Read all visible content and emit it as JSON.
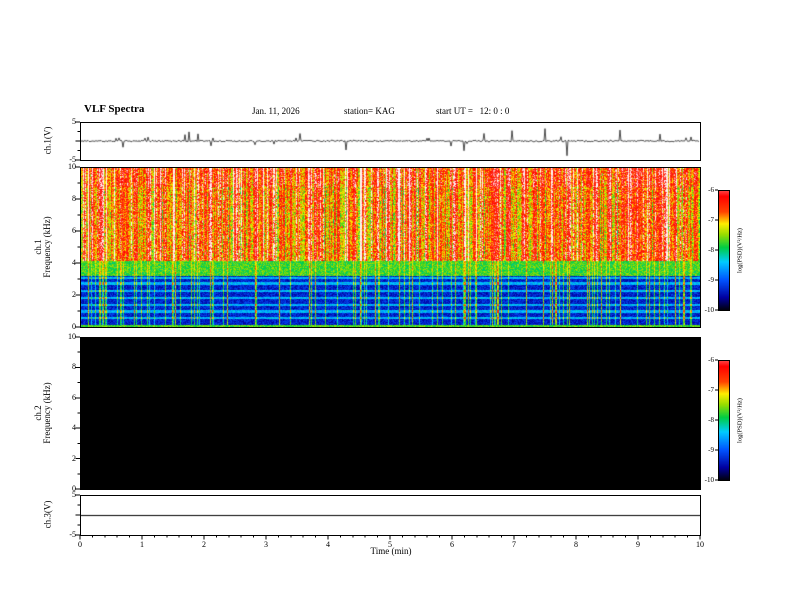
{
  "header": {
    "title": "VLF Spectra",
    "date": "Jan. 11, 2026",
    "station": "station= KAG",
    "start_ut": "start UT =   12: 0 : 0"
  },
  "x_axis": {
    "label": "Time (min)",
    "ticks": [
      0,
      1,
      2,
      3,
      4,
      5,
      6,
      7,
      8,
      9,
      10
    ],
    "range": [
      0,
      10
    ]
  },
  "panels": {
    "ch1_wave": {
      "axis_label": "ch.1(V)",
      "tick_labels": [
        5,
        -5
      ],
      "ylim": [
        -5,
        5
      ]
    },
    "ch1_spec": {
      "axis_label_line1": "ch.1",
      "axis_label_line2": "Frequency (kHz)",
      "tick_labels": [
        0,
        2,
        4,
        6,
        8,
        10
      ],
      "ylim": [
        0,
        10
      ]
    },
    "ch2_spec": {
      "axis_label_line1": "ch.2",
      "axis_label_line2": "Frequency (kHz)",
      "tick_labels": [
        0,
        2,
        4,
        6,
        8,
        10
      ],
      "ylim": [
        0,
        10
      ]
    },
    "ch3_wave": {
      "axis_label": "ch.3(V)",
      "tick_labels": [
        5,
        -5
      ],
      "ylim": [
        -5,
        5
      ]
    }
  },
  "colorbars": [
    {
      "label": "log(PSD)(V²/Hz)",
      "tick_labels": [
        -6,
        -7,
        -8,
        -9,
        -10
      ],
      "range": [
        -6,
        -10
      ]
    },
    {
      "label": "log(PSD)(V²/Hz)",
      "tick_labels": [
        -6,
        -7,
        -8,
        -9,
        -10
      ],
      "range": [
        -6,
        -10
      ]
    }
  ],
  "colormap": {
    "stops": [
      [
        0.0,
        "#000012"
      ],
      [
        0.1,
        "#0000a0"
      ],
      [
        0.25,
        "#0055ff"
      ],
      [
        0.4,
        "#00ccff"
      ],
      [
        0.52,
        "#00cc44"
      ],
      [
        0.63,
        "#99dd00"
      ],
      [
        0.72,
        "#ffee00"
      ],
      [
        0.82,
        "#ff4400"
      ],
      [
        0.95,
        "#ff0000"
      ],
      [
        1.13,
        "#ffffff"
      ]
    ]
  },
  "chart_data": [
    {
      "type": "line",
      "title": "ch.1(V) time series",
      "xlabel": "Time (min)",
      "ylabel": "ch.1(V)",
      "xlim": [
        0,
        10
      ],
      "ylim": [
        -5,
        5
      ],
      "description": "Noisy baseline near 0 V with many short impulsive spikes throughout the 10-minute record; several spikes approach +5/-5 V (notably near 0.1, 2.7, 4.9, 6.8 and 7.9 min)."
    },
    {
      "type": "heatmap",
      "title": "ch.1 VLF spectrogram",
      "xlabel": "Time (min)",
      "ylabel": "Frequency (kHz)",
      "xlim": [
        0,
        10
      ],
      "ylim": [
        0,
        10
      ],
      "zlabel": "log(PSD)(V²/Hz)",
      "zlim": [
        -10,
        -6
      ],
      "description": "Dense broadband impulsive (sferic) activity: intense power (red/white, about -6) from ~4 to 10 kHz as near-continuous vertical striping; a yellow-green band near 3-4 kHz (about -8); weak blue background (about -9.5) below 3 kHz crossed by narrow cyan horizontal lines (~0.5-3 kHz) and frequent vertical green impulse streaks extending down to 0 kHz; bright green line along the 0 kHz edge."
    },
    {
      "type": "heatmap",
      "title": "ch.2 VLF spectrogram",
      "xlabel": "Time (min)",
      "ylabel": "Frequency (kHz)",
      "xlim": [
        0,
        10
      ],
      "ylim": [
        0,
        10
      ],
      "zlabel": "log(PSD)(V²/Hz)",
      "zlim": [
        -10,
        -6
      ],
      "description": "No signal: uniformly black panel (power at or below -10 over 0-10 kHz for the whole record)."
    },
    {
      "type": "line",
      "title": "ch.3(V) time series",
      "xlabel": "Time (min)",
      "ylabel": "ch.3(V)",
      "xlim": [
        0,
        10
      ],
      "ylim": [
        -5,
        5
      ],
      "description": "Flat line at 0 V for the entire 10-minute record."
    }
  ]
}
